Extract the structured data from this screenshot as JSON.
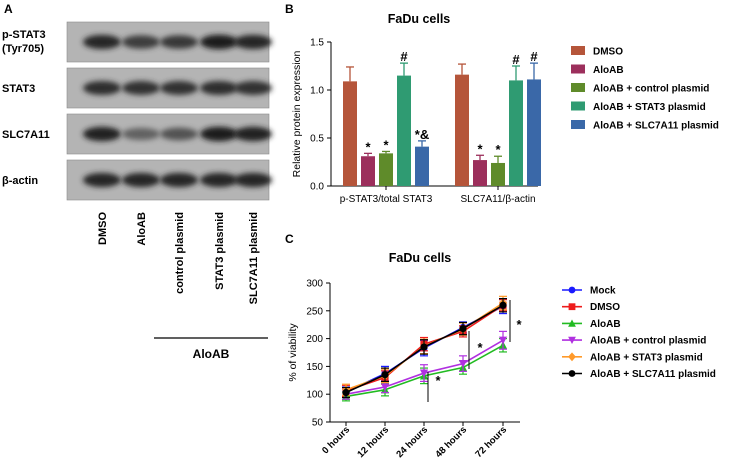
{
  "panels": {
    "a": "A",
    "b": "B",
    "c": "C"
  },
  "blot": {
    "rows": [
      {
        "label_line1": "p-STAT3",
        "label_line2": "(Tyr705)",
        "intensity": [
          0.85,
          0.7,
          0.72,
          0.92,
          0.85
        ]
      },
      {
        "label_line1": "STAT3",
        "label_line2": "",
        "intensity": [
          0.8,
          0.78,
          0.78,
          0.8,
          0.78
        ]
      },
      {
        "label_line1": "SLC7A11",
        "label_line2": "",
        "intensity": [
          0.88,
          0.45,
          0.55,
          0.92,
          0.88
        ]
      },
      {
        "label_line1": "β-actin",
        "label_line2": "",
        "intensity": [
          0.85,
          0.85,
          0.85,
          0.85,
          0.85
        ]
      }
    ],
    "lanes": [
      "DMSO",
      "AloAB",
      "control plasmid",
      "STAT3 plasmid",
      "SLC7A11 plasmid"
    ],
    "group_label": "AloAB"
  },
  "chart_data": [
    {
      "type": "bar",
      "title": "FaDu cells",
      "ylabel": "Relative protein expression",
      "xlabel": "",
      "ylim": [
        0,
        1.5
      ],
      "yticks": [
        "0.0",
        "0.5",
        "1.0",
        "1.5"
      ],
      "grid": false,
      "legend_position": "right",
      "categories": [
        "p-STAT3/total STAT3",
        "SLC7A11/β-actin"
      ],
      "series": [
        {
          "name": "DMSO",
          "color": "#b5553a",
          "values": [
            1.09,
            1.16
          ],
          "errors": [
            0.15,
            0.11
          ],
          "annotations": [
            "",
            ""
          ]
        },
        {
          "name": "AloAB",
          "color": "#9c2f5c",
          "values": [
            0.31,
            0.27
          ],
          "errors": [
            0.03,
            0.05
          ],
          "annotations": [
            "*",
            "*"
          ]
        },
        {
          "name": "AloAB + control plasmid",
          "color": "#5f8b2a",
          "values": [
            0.34,
            0.24
          ],
          "errors": [
            0.02,
            0.07
          ],
          "annotations": [
            "*",
            "*"
          ]
        },
        {
          "name": "AloAB + STAT3 plasmid",
          "color": "#2f9b72",
          "values": [
            1.15,
            1.1
          ],
          "errors": [
            0.13,
            0.15
          ],
          "annotations": [
            "#",
            "#"
          ]
        },
        {
          "name": "AloAB + SLC7A11 plasmid",
          "color": "#3a68a8",
          "values": [
            0.41,
            1.11
          ],
          "errors": [
            0.06,
            0.17
          ],
          "annotations": [
            "*&",
            "#"
          ]
        }
      ]
    },
    {
      "type": "line",
      "title": "FaDu cells",
      "ylabel": "% of viability",
      "xlabel": "",
      "ylim": [
        50,
        300
      ],
      "yticks": [
        50,
        100,
        150,
        200,
        250,
        300
      ],
      "grid": false,
      "legend_position": "right",
      "categories": [
        "0 hours",
        "12 hours",
        "24 hours",
        "48 hours",
        "72 hours"
      ],
      "series": [
        {
          "name": "Mock",
          "color": "#1a1aff",
          "marker": "circle",
          "values": [
            104,
            137,
            183,
            220,
            258
          ],
          "errors": [
            9,
            13,
            14,
            10,
            13
          ]
        },
        {
          "name": "DMSO",
          "color": "#ee1c1c",
          "marker": "square",
          "values": [
            106,
            130,
            190,
            213,
            260
          ],
          "errors": [
            10,
            12,
            12,
            10,
            10
          ]
        },
        {
          "name": "AloAB",
          "color": "#22bb22",
          "marker": "triangle",
          "values": [
            96,
            108,
            133,
            148,
            188
          ],
          "errors": [
            8,
            11,
            14,
            12,
            12
          ]
        },
        {
          "name": "AloAB + control plasmid",
          "color": "#b030e0",
          "marker": "triangle-down",
          "values": [
            100,
            113,
            138,
            155,
            197
          ],
          "errors": [
            9,
            10,
            15,
            14,
            16
          ]
        },
        {
          "name": "AloAB + STAT3 plasmid",
          "color": "#ff9a2a",
          "marker": "diamond",
          "values": [
            108,
            133,
            186,
            217,
            264
          ],
          "errors": [
            10,
            12,
            13,
            11,
            12
          ]
        },
        {
          "name": "AloAB + SLC7A11 plasmid",
          "color": "#000000",
          "marker": "circle",
          "values": [
            103,
            135,
            185,
            218,
            260
          ],
          "errors": [
            9,
            12,
            13,
            11,
            12
          ]
        }
      ],
      "annotations": [
        "*",
        "*",
        "*"
      ]
    }
  ]
}
